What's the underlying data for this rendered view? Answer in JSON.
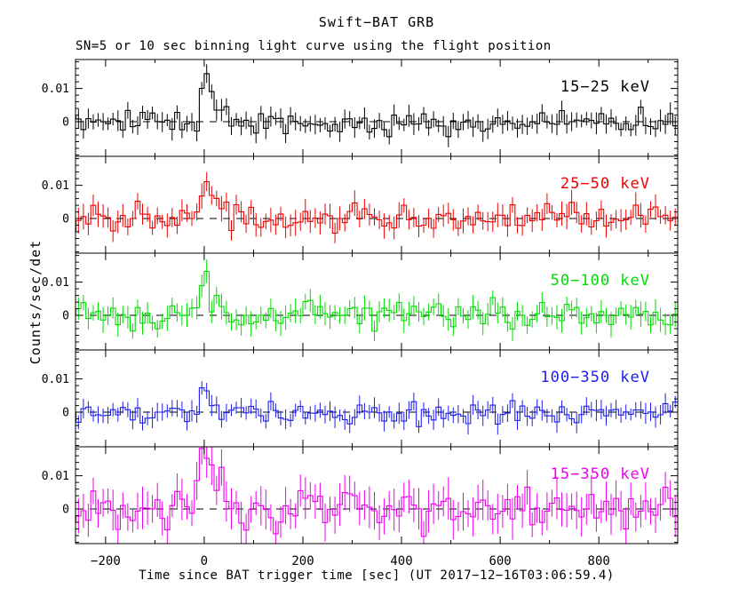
{
  "header": {
    "title": "Swift−BAT GRB",
    "subtitle": "SN=5 or 10 sec binning light curve using the flight position"
  },
  "axes": {
    "xlabel": "Time since BAT trigger time [sec] (UT 2017−12−16T03:06:59.4)",
    "ylabel": "Counts/sec/det",
    "x_range_sec": [
      -261,
      960
    ],
    "x_major_ticks": [
      -200,
      0,
      200,
      400,
      600,
      800
    ],
    "x_tick_labels": [
      "−200",
      "0",
      "200",
      "400",
      "600",
      "800"
    ],
    "x_minor_step_sec": 100,
    "y_range": [
      -0.0104,
      0.0187
    ],
    "y_major_ticks": [
      0,
      0.01
    ],
    "y_tick_labels": [
      "0",
      "0.01"
    ],
    "y_minor_step": 0.002,
    "zero_line_style": "dashed"
  },
  "chart_data": {
    "type": "line",
    "subtype": "stepped-histogram-with-errorbars",
    "x_units": "sec since BAT trigger",
    "y_units": "Counts/sec/det",
    "bin_width_sec": 10,
    "grid": false,
    "panels": [
      {
        "label": "15−25 keV",
        "color": "#000000",
        "seed": 11,
        "noise_sigma": 0.0018,
        "err_half": 0.0026,
        "burst_profile": [
          [
            -10,
            0.0005
          ],
          [
            0,
            0.018
          ],
          [
            5,
            0.016
          ],
          [
            10,
            0.008
          ],
          [
            20,
            0.0055
          ],
          [
            30,
            0.004
          ],
          [
            45,
            0.0025
          ],
          [
            60,
            0.0012
          ],
          [
            80,
            0
          ]
        ]
      },
      {
        "label": "25−50 keV",
        "color": "#ee0000",
        "seed": 23,
        "noise_sigma": 0.002,
        "err_half": 0.003,
        "burst_profile": [
          [
            -10,
            0.0005
          ],
          [
            0,
            0.018
          ],
          [
            5,
            0.013
          ],
          [
            10,
            0.009
          ],
          [
            20,
            0.006
          ],
          [
            30,
            0.0045
          ],
          [
            45,
            0.003
          ],
          [
            60,
            0.0015
          ],
          [
            80,
            0
          ]
        ]
      },
      {
        "label": "50−100 keV",
        "color": "#00dd00",
        "seed": 37,
        "noise_sigma": 0.002,
        "err_half": 0.003,
        "burst_profile": [
          [
            -10,
            0.0005
          ],
          [
            0,
            0.019
          ],
          [
            5,
            0.012
          ],
          [
            10,
            0.005
          ],
          [
            20,
            0.003
          ],
          [
            30,
            0.002
          ],
          [
            50,
            0.001
          ],
          [
            70,
            0
          ]
        ]
      },
      {
        "label": "100−350 keV",
        "color": "#1e1eee",
        "seed": 47,
        "noise_sigma": 0.0017,
        "err_half": 0.0025,
        "burst_profile": [
          [
            -10,
            0.0005
          ],
          [
            0,
            0.012
          ],
          [
            5,
            0.005
          ],
          [
            10,
            0.009
          ],
          [
            15,
            0.003
          ],
          [
            25,
            0.001
          ],
          [
            40,
            0
          ]
        ]
      },
      {
        "label": "15−350 keV",
        "color": "#ee00ee",
        "seed": 59,
        "noise_sigma": 0.0033,
        "err_half": 0.005,
        "burst_profile": [
          [
            -30,
            0.002
          ],
          [
            -20,
            0.004
          ],
          [
            -10,
            0.007
          ],
          [
            0,
            0.019
          ],
          [
            10,
            0.016
          ],
          [
            20,
            0.01
          ],
          [
            30,
            0.008
          ],
          [
            40,
            0.006
          ],
          [
            55,
            0.004
          ],
          [
            70,
            0.002
          ],
          [
            90,
            0
          ]
        ]
      }
    ]
  }
}
